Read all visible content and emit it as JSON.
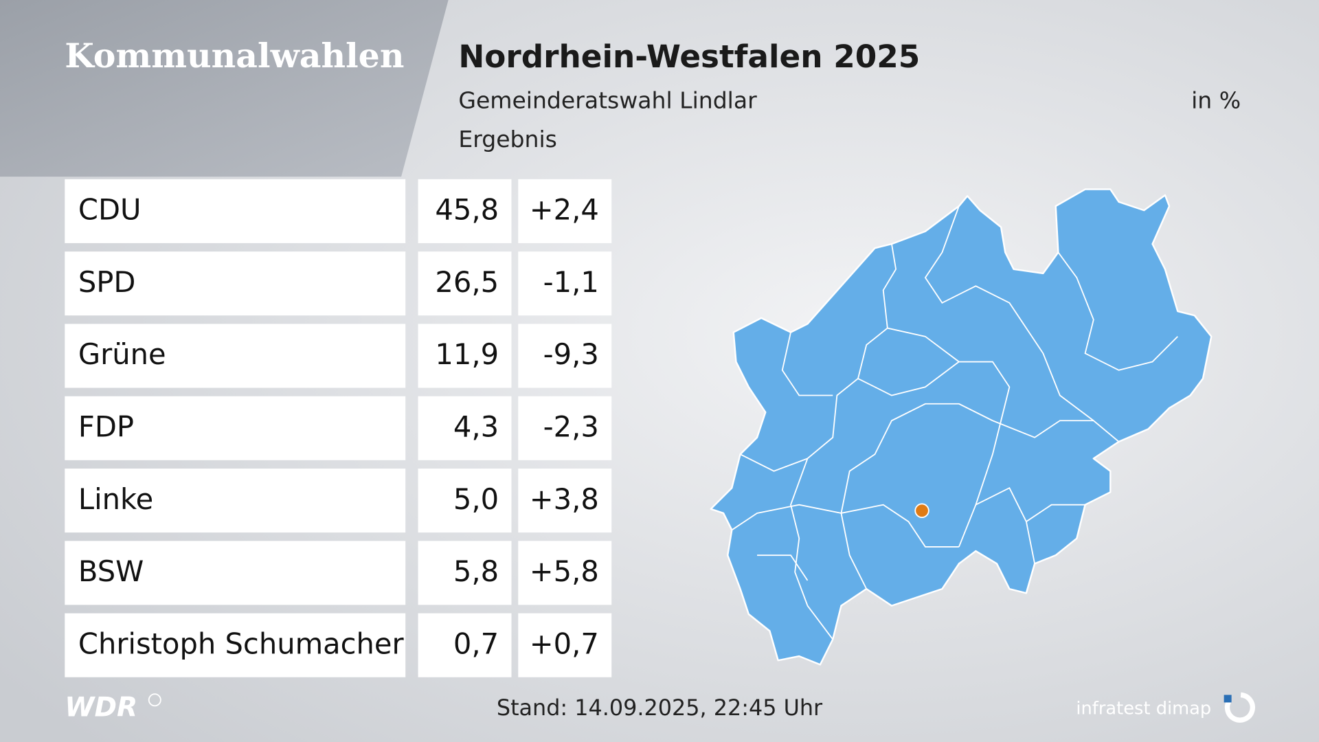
{
  "header": {
    "section": "Kommunalwahlen",
    "title": "Nordrhein-Westfalen 2025",
    "subtitle": "Gemeinderatswahl Lindlar",
    "caption": "Ergebnis",
    "unit": "in %"
  },
  "table": {
    "rows": [
      [
        "CDU",
        "45,8",
        "+2,4"
      ],
      [
        "SPD",
        "26,5",
        "-1,1"
      ],
      [
        "Grüne",
        "11,9",
        "-9,3"
      ],
      [
        "FDP",
        "4,3",
        "-2,3"
      ],
      [
        "Linke",
        "5,0",
        "+3,8"
      ],
      [
        "BSW",
        "5,8",
        "+5,8"
      ],
      [
        "Christoph Schumacher",
        "0,7",
        "+0,7"
      ]
    ]
  },
  "footer": {
    "broadcaster": "WDR",
    "timestamp": "Stand: 14.09.2025, 22:45 Uhr",
    "source": "infratest dimap"
  }
}
